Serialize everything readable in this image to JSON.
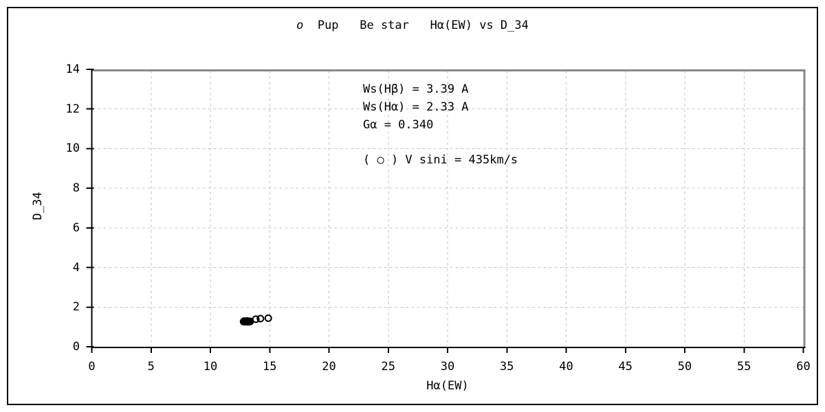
{
  "title": {
    "star": "o",
    "rest": "  Pup   Be star   Hα(EW) vs D_34"
  },
  "chart_data": {
    "type": "scatter",
    "title": "o Pup  Be star  Hα(EW) vs D_34",
    "xlabel": "Hα(EW)",
    "ylabel": "D_34",
    "xlim": [
      0,
      60
    ],
    "ylim": [
      0,
      14
    ],
    "xticks": [
      0,
      5,
      10,
      15,
      20,
      25,
      30,
      35,
      40,
      45,
      50,
      55,
      60
    ],
    "yticks": [
      0,
      2,
      4,
      6,
      8,
      10,
      12,
      14
    ],
    "grid": {
      "style": "dashed",
      "show": true
    },
    "legend_position": "inside-top-center",
    "annotations": [
      "Ws(Hβ) = 3.39 A",
      "Ws(Hα) = 2.33 A",
      "Gα = 0.340",
      "( ○ ) V sini = 435km/s"
    ],
    "series": [
      {
        "name": "V sini = 435km/s",
        "marker": "open-circle",
        "color": "#000000",
        "points": [
          [
            12.8,
            1.27
          ],
          [
            12.86,
            1.3
          ],
          [
            12.92,
            1.26
          ],
          [
            12.98,
            1.29
          ],
          [
            13.04,
            1.26
          ],
          [
            13.1,
            1.3
          ],
          [
            13.16,
            1.27
          ],
          [
            13.22,
            1.29
          ],
          [
            13.28,
            1.26
          ],
          [
            13.36,
            1.28
          ],
          [
            13.83,
            1.39
          ],
          [
            14.22,
            1.42
          ],
          [
            14.88,
            1.44
          ]
        ]
      }
    ]
  },
  "colors": {
    "axis": "#000000",
    "frame_gray": "#878787",
    "grid": "#c6c6c6",
    "marker": "#000000",
    "text": "#000000"
  }
}
